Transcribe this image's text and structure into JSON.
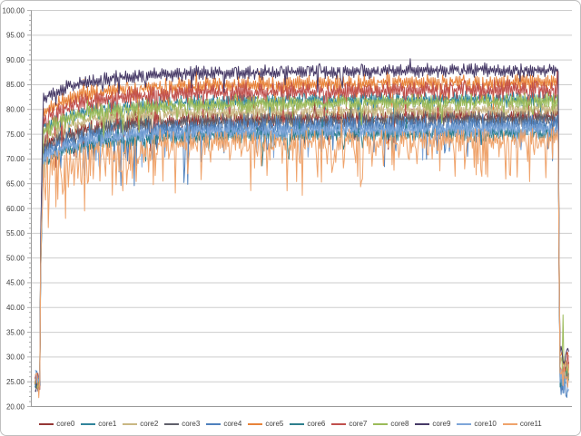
{
  "chart_data": {
    "type": "line",
    "title": "",
    "xlabel": "",
    "ylabel": "",
    "y_axis": {
      "min": 20,
      "max": 100,
      "major_step": 5,
      "minor_step": 1,
      "tick_labels": [
        "100.00",
        "95.00",
        "90.00",
        "85.00",
        "80.00",
        "75.00",
        "70.00",
        "65.00",
        "60.00",
        "55.00",
        "50.00",
        "45.00",
        "40.00",
        "35.00",
        "30.00",
        "25.00",
        "20.00"
      ]
    },
    "x_axis": {
      "tick_labels": [],
      "gridlines": false
    },
    "grid": {
      "horizontal": true,
      "gridline_color": "#cdcdcd",
      "axis_color": "#9b9b9b"
    },
    "legend": {
      "position": "bottom",
      "entries": [
        "core0",
        "core1",
        "core2",
        "core3",
        "core4",
        "core5",
        "core6",
        "core7",
        "core8",
        "core9",
        "core10",
        "core11"
      ]
    },
    "description": "12 noisy CPU-core temperature traces: idle near 25, near-vertical ramp, long noisy plateau in stacked bands between ~74 and ~90 with frequent downward spikes (deepest to ~60-65), then a near-vertical drop back to ~22-33 at the right edge.",
    "generation": {
      "seed": 12,
      "points": 560,
      "idle_points": 5,
      "ramp_points": 4,
      "end_points": 11
    },
    "series": [
      {
        "name": "core0",
        "color": "#953735",
        "start_value": 25.4,
        "steady_mean": 78.9,
        "noise_amp": 1.3,
        "dip_probability": 0.03,
        "dip_depth": 5.0,
        "deep_dip_p": 0.0,
        "deep_dip_extra": 0,
        "end_value": 27.0
      },
      {
        "name": "core1",
        "color": "#31849b",
        "start_value": 25.0,
        "steady_mean": 82.4,
        "noise_amp": 1.2,
        "dip_probability": 0.025,
        "dip_depth": 4.5,
        "deep_dip_p": 0.0,
        "deep_dip_extra": 0,
        "end_value": 26.0
      },
      {
        "name": "core2",
        "color": "#c9b783",
        "start_value": 26.0,
        "steady_mean": 80.2,
        "noise_amp": 1.2,
        "dip_probability": 0.03,
        "dip_depth": 5.0,
        "deep_dip_p": 0.0,
        "deep_dip_extra": 0,
        "end_value": 28.0
      },
      {
        "name": "core3",
        "color": "#60606b",
        "start_value": 24.6,
        "steady_mean": 78.3,
        "noise_amp": 1.2,
        "dip_probability": 0.025,
        "dip_depth": 4.5,
        "deep_dip_p": 0.0,
        "deep_dip_extra": 0,
        "end_value": 25.5
      },
      {
        "name": "core4",
        "color": "#4f81bd",
        "start_value": 25.8,
        "steady_mean": 77.2,
        "noise_amp": 1.5,
        "dip_probability": 0.07,
        "dip_depth": 6.5,
        "deep_dip_p": 0.02,
        "deep_dip_extra": 5.0,
        "end_value": 24.0
      },
      {
        "name": "core5",
        "color": "#e8833a",
        "start_value": 25.2,
        "steady_mean": 85.7,
        "noise_amp": 1.3,
        "dip_probability": 0.025,
        "dip_depth": 5.0,
        "deep_dip_p": 0.0,
        "deep_dip_extra": 0,
        "end_value": 29.0
      },
      {
        "name": "core6",
        "color": "#2e7f8d",
        "start_value": 24.8,
        "steady_mean": 75.5,
        "noise_amp": 1.2,
        "dip_probability": 0.03,
        "dip_depth": 4.5,
        "deep_dip_p": 0.0,
        "deep_dip_extra": 0,
        "end_value": 26.5
      },
      {
        "name": "core7",
        "color": "#c0504d",
        "start_value": 25.6,
        "steady_mean": 84.2,
        "noise_amp": 1.5,
        "dip_probability": 0.04,
        "dip_depth": 5.5,
        "deep_dip_p": 0.0,
        "deep_dip_extra": 0,
        "end_value": 28.5
      },
      {
        "name": "core8",
        "color": "#9bbb59",
        "start_value": 25.0,
        "steady_mean": 81.8,
        "noise_amp": 1.3,
        "dip_probability": 0.03,
        "dip_depth": 4.5,
        "deep_dip_p": 0.0,
        "deep_dip_extra": 0,
        "end_value": 27.5
      },
      {
        "name": "core9",
        "color": "#473a67",
        "start_value": 24.4,
        "steady_mean": 88.2,
        "noise_amp": 1.1,
        "dip_probability": 0.02,
        "dip_depth": 3.5,
        "deep_dip_p": 0.0,
        "deep_dip_extra": 0,
        "end_value": 30.0
      },
      {
        "name": "core10",
        "color": "#7ea6d9",
        "start_value": 25.9,
        "steady_mean": 76.3,
        "noise_amp": 1.3,
        "dip_probability": 0.04,
        "dip_depth": 5.0,
        "deep_dip_p": 0.0,
        "deep_dip_extra": 0,
        "end_value": 25.0
      },
      {
        "name": "core11",
        "color": "#efa36b",
        "start_value": 25.3,
        "steady_mean": 74.2,
        "noise_amp": 1.8,
        "dip_probability": 0.2,
        "dip_depth": 5.5,
        "deep_dip_p": 0.03,
        "deep_dip_extra": 5.5,
        "end_value": 26.0
      }
    ]
  }
}
